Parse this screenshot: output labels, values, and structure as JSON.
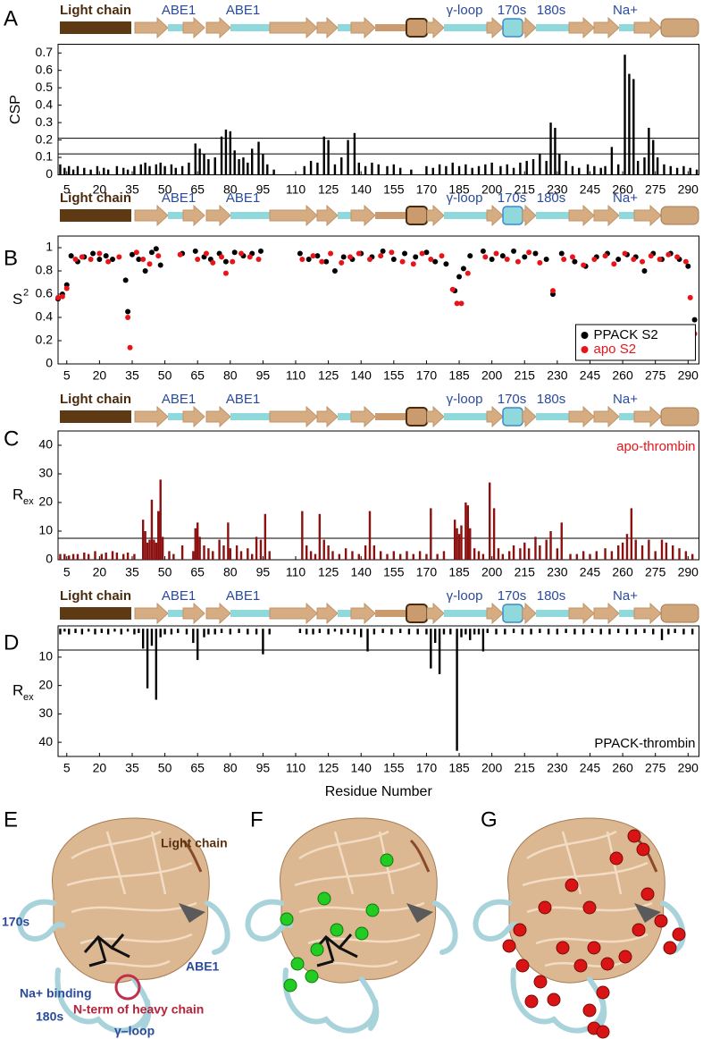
{
  "chart_data": [
    {
      "type": "bar",
      "panel": "A",
      "ylabel": "CSP",
      "xlim": [
        1,
        295
      ],
      "ylim": [
        0,
        0.75
      ],
      "xticks": [
        5,
        20,
        35,
        50,
        65,
        80,
        95,
        110,
        125,
        140,
        155,
        170,
        185,
        200,
        215,
        230,
        245,
        260,
        275,
        290
      ],
      "yticks": [
        0,
        0.1,
        0.2,
        0.3,
        0.4,
        0.5,
        0.6,
        0.7
      ],
      "hlines": [
        0.12,
        0.21
      ],
      "series": [
        {
          "color": "#000000",
          "x": [
            2,
            4,
            6,
            8,
            10,
            13,
            16,
            19,
            22,
            24,
            28,
            31,
            33,
            36,
            39,
            41,
            43,
            46,
            48,
            50,
            53,
            55,
            58,
            61,
            64,
            66,
            68,
            70,
            73,
            76,
            78,
            80,
            82,
            84,
            86,
            88,
            90,
            93,
            95,
            97,
            100,
            114,
            117,
            120,
            123,
            125,
            128,
            131,
            134,
            137,
            139,
            142,
            145,
            148,
            152,
            155,
            158,
            163,
            170,
            173,
            176,
            179,
            182,
            185,
            188,
            191,
            194,
            197,
            200,
            204,
            207,
            210,
            213,
            216,
            219,
            222,
            225,
            227,
            229,
            231,
            234,
            237,
            240,
            244,
            247,
            250,
            252,
            255,
            258,
            261,
            263,
            265,
            267,
            270,
            272,
            274,
            276,
            279,
            282,
            285,
            288,
            291,
            294
          ],
          "values": [
            0.06,
            0.04,
            0.05,
            0.03,
            0.05,
            0.04,
            0.03,
            0.05,
            0.04,
            0.03,
            0.05,
            0.04,
            0.03,
            0.05,
            0.06,
            0.07,
            0.05,
            0.06,
            0.07,
            0.05,
            0.06,
            0.04,
            0.05,
            0.07,
            0.18,
            0.15,
            0.12,
            0.09,
            0.1,
            0.22,
            0.26,
            0.25,
            0.14,
            0.09,
            0.1,
            0.07,
            0.15,
            0.19,
            0.12,
            0.06,
            0.03,
            0.05,
            0.08,
            0.07,
            0.22,
            0.2,
            0.06,
            0.1,
            0.2,
            0.24,
            0.07,
            0.05,
            0.07,
            0.06,
            0.05,
            0.06,
            0.04,
            0.03,
            0.05,
            0.04,
            0.06,
            0.05,
            0.07,
            0.05,
            0.06,
            0.04,
            0.05,
            0.06,
            0.07,
            0.05,
            0.06,
            0.04,
            0.07,
            0.08,
            0.09,
            0.12,
            0.08,
            0.3,
            0.27,
            0.12,
            0.08,
            0.05,
            0.04,
            0.06,
            0.05,
            0.04,
            0.05,
            0.16,
            0.06,
            0.69,
            0.58,
            0.55,
            0.08,
            0.1,
            0.27,
            0.2,
            0.1,
            0.06,
            0.05,
            0.04,
            0.05,
            0.04,
            0.03
          ]
        }
      ]
    },
    {
      "type": "scatter",
      "panel": "B",
      "ylabel": "S",
      "ylabel_sup": "2",
      "xlim": [
        1,
        295
      ],
      "ylim": [
        0,
        1.1
      ],
      "xticks": [
        5,
        20,
        35,
        50,
        65,
        80,
        95,
        110,
        125,
        140,
        155,
        170,
        185,
        200,
        215,
        230,
        245,
        260,
        275,
        290
      ],
      "yticks": [
        0,
        0.2,
        0.4,
        0.6,
        0.8,
        1
      ],
      "legend": "lower right",
      "series": [
        {
          "name": "PPACK S2",
          "color": "#000000",
          "x": [
            1,
            3,
            5,
            7,
            10,
            13,
            17,
            20,
            23,
            26,
            32,
            33,
            35,
            38,
            41,
            44,
            46,
            48,
            58,
            64,
            68,
            71,
            75,
            78,
            82,
            86,
            90,
            94,
            112,
            116,
            120,
            124,
            128,
            132,
            136,
            140,
            145,
            150,
            155,
            160,
            165,
            170,
            174,
            179,
            183,
            185,
            187,
            190,
            196,
            200,
            205,
            210,
            215,
            220,
            225,
            228,
            232,
            238,
            243,
            248,
            253,
            258,
            262,
            266,
            270,
            274,
            278,
            282,
            286,
            290,
            293
          ],
          "values": [
            0.56,
            0.6,
            0.68,
            0.93,
            0.88,
            0.92,
            0.95,
            0.9,
            0.93,
            0.9,
            0.72,
            0.45,
            0.94,
            0.9,
            0.8,
            0.96,
            0.99,
            0.85,
            0.95,
            0.97,
            0.92,
            0.9,
            0.95,
            0.88,
            0.96,
            0.93,
            0.95,
            0.97,
            0.95,
            0.9,
            0.93,
            0.88,
            0.8,
            0.92,
            0.9,
            0.95,
            0.92,
            0.97,
            0.9,
            0.95,
            0.92,
            0.96,
            0.88,
            0.86,
            0.63,
            0.75,
            0.82,
            0.93,
            0.97,
            0.9,
            0.93,
            0.97,
            0.92,
            0.95,
            0.9,
            0.6,
            0.95,
            0.88,
            0.84,
            0.92,
            0.95,
            0.9,
            0.94,
            0.92,
            0.8,
            0.95,
            0.9,
            0.95,
            0.9,
            0.84,
            0.38
          ]
        },
        {
          "name": "apo S2",
          "color": "#e8141a",
          "x": [
            1,
            3,
            5,
            9,
            12,
            16,
            20,
            24,
            29,
            33,
            34,
            37,
            40,
            43,
            47,
            57,
            65,
            69,
            72,
            76,
            78,
            81,
            85,
            89,
            93,
            113,
            118,
            122,
            126,
            131,
            135,
            139,
            144,
            149,
            154,
            159,
            164,
            168,
            172,
            177,
            182,
            184,
            186,
            189,
            197,
            202,
            207,
            212,
            217,
            222,
            228,
            233,
            237,
            242,
            247,
            252,
            256,
            261,
            265,
            269,
            273,
            277,
            281,
            285,
            289,
            291,
            293
          ],
          "values": [
            0.57,
            0.58,
            0.65,
            0.9,
            0.92,
            0.9,
            0.95,
            0.88,
            0.92,
            0.4,
            0.14,
            0.96,
            0.9,
            0.86,
            0.93,
            0.94,
            0.9,
            0.95,
            0.87,
            0.92,
            0.78,
            0.88,
            0.95,
            0.92,
            0.9,
            0.9,
            0.93,
            0.88,
            0.95,
            0.87,
            0.92,
            0.95,
            0.9,
            0.93,
            0.96,
            0.88,
            0.86,
            0.95,
            0.9,
            0.93,
            0.64,
            0.52,
            0.52,
            0.78,
            0.92,
            0.95,
            0.9,
            0.88,
            0.96,
            0.87,
            0.63,
            0.9,
            0.92,
            0.85,
            0.9,
            0.93,
            0.86,
            0.95,
            0.9,
            0.88,
            0.93,
            0.9,
            0.94,
            0.92,
            0.88,
            0.57,
            0.26
          ]
        }
      ]
    },
    {
      "type": "bar",
      "panel": "C",
      "ylabel": "R",
      "ylabel_sub": "ex",
      "xlim": [
        1,
        295
      ],
      "ylim": [
        0,
        45
      ],
      "xticks": [
        5,
        20,
        35,
        50,
        65,
        80,
        95,
        110,
        125,
        140,
        155,
        170,
        185,
        200,
        215,
        230,
        245,
        260,
        275,
        290
      ],
      "yticks": [
        0,
        10,
        20,
        30,
        40
      ],
      "hlines": [
        7.5
      ],
      "annotation": {
        "text": "apo-thrombin",
        "color": "#e8141a",
        "corner": "upper right"
      },
      "series": [
        {
          "color": "#8b1010",
          "x": [
            2,
            4,
            6,
            8,
            10,
            13,
            15,
            18,
            21,
            23,
            26,
            28,
            31,
            33,
            36,
            40,
            41,
            42,
            43,
            44,
            45,
            46,
            47,
            48,
            49,
            52,
            54,
            58,
            63,
            64,
            65,
            66,
            68,
            70,
            72,
            75,
            77,
            79,
            80,
            83,
            85,
            88,
            90,
            92,
            94,
            96,
            98,
            113,
            115,
            117,
            119,
            121,
            123,
            125,
            127,
            130,
            133,
            136,
            139,
            142,
            144,
            146,
            149,
            152,
            155,
            158,
            161,
            164,
            167,
            170,
            172,
            175,
            178,
            183,
            184,
            185,
            186,
            188,
            189,
            190,
            192,
            194,
            196,
            199,
            201,
            203,
            205,
            208,
            210,
            213,
            215,
            217,
            220,
            222,
            225,
            227,
            230,
            232,
            236,
            239,
            242,
            245,
            248,
            252,
            255,
            258,
            260,
            262,
            264,
            266,
            269,
            272,
            275,
            278,
            280,
            283,
            286,
            289,
            292
          ],
          "values": [
            2,
            2,
            1.5,
            2,
            2,
            2.5,
            2,
            3,
            2,
            2.5,
            3,
            2.5,
            2,
            2.5,
            2,
            14,
            10,
            6,
            7,
            21,
            7,
            6,
            17,
            28,
            8,
            3,
            2,
            5,
            3,
            11,
            13,
            8,
            5,
            4,
            3,
            7,
            5,
            13,
            4,
            5,
            3,
            4,
            2,
            8,
            7,
            16,
            3,
            17,
            5,
            3,
            2,
            16,
            7,
            5,
            3,
            2,
            4,
            3,
            2,
            5,
            17,
            5,
            3,
            2,
            3,
            2,
            3,
            2,
            3,
            2,
            18,
            2,
            3,
            14,
            11,
            9,
            12,
            20,
            19,
            11,
            4,
            3,
            2,
            27,
            18,
            4,
            2,
            3,
            5,
            4,
            6,
            4,
            8,
            5,
            7,
            10,
            4,
            13,
            2,
            2,
            3,
            2,
            3,
            4,
            3,
            5,
            6,
            9,
            18,
            7,
            5,
            7,
            3,
            7,
            6,
            5,
            4,
            3,
            2
          ]
        }
      ]
    },
    {
      "type": "bar",
      "panel": "D",
      "ylabel": "R",
      "ylabel_sub": "ex",
      "xlabel": "Residue Number",
      "xlim": [
        1,
        295
      ],
      "ylim": [
        -1,
        45
      ],
      "y_inverted": true,
      "xticks": [
        5,
        20,
        35,
        50,
        65,
        80,
        95,
        110,
        125,
        140,
        155,
        170,
        185,
        200,
        215,
        230,
        245,
        260,
        275,
        290
      ],
      "yticks": [
        10,
        20,
        30,
        40
      ],
      "hlines": [
        7.5
      ],
      "annotation": {
        "text": "PPACK-thrombin",
        "color": "#000000",
        "corner": "lower right"
      },
      "series": [
        {
          "color": "#000000",
          "x": [
            2,
            4,
            6,
            9,
            12,
            15,
            18,
            21,
            24,
            27,
            30,
            33,
            36,
            38,
            40,
            42,
            44,
            46,
            48,
            50,
            53,
            56,
            60,
            63,
            65,
            68,
            70,
            73,
            76,
            80,
            84,
            88,
            92,
            95,
            98,
            112,
            115,
            118,
            121,
            125,
            128,
            131,
            134,
            137,
            140,
            143,
            146,
            150,
            154,
            158,
            162,
            166,
            170,
            172,
            174,
            176,
            178,
            181,
            184,
            186,
            188,
            190,
            192,
            194,
            196,
            198,
            202,
            206,
            210,
            214,
            218,
            222,
            226,
            230,
            234,
            238,
            242,
            246,
            250,
            254,
            258,
            262,
            266,
            270,
            274,
            278,
            281,
            284,
            288,
            292
          ],
          "values": [
            2,
            1,
            2,
            1.5,
            2,
            1,
            2,
            1.5,
            2,
            1,
            2,
            1,
            2,
            1.5,
            7,
            21,
            6,
            25,
            3,
            2,
            2,
            1.5,
            2,
            5,
            11,
            3,
            2,
            2,
            1.5,
            2,
            1.5,
            2,
            2,
            9,
            2,
            1.5,
            2,
            2,
            1.5,
            2,
            1,
            2,
            1.5,
            2,
            3,
            8,
            2,
            1.5,
            2,
            1.5,
            2,
            2,
            2,
            14,
            5,
            16,
            2,
            2,
            43,
            3,
            2,
            4,
            2,
            2,
            8,
            1.5,
            2,
            2,
            1.5,
            2,
            2,
            1.5,
            2,
            2,
            1.5,
            2,
            2,
            1.5,
            2,
            2,
            1.5,
            2,
            2,
            1.5,
            2,
            4,
            2,
            1.5,
            2,
            2
          ]
        }
      ]
    }
  ],
  "topology": {
    "labels": [
      "Light chain",
      "ABE1",
      "ABE1",
      "γ-loop",
      "170s",
      "180s",
      "Na+"
    ]
  },
  "structures": {
    "panels": [
      "E",
      "F",
      "G"
    ],
    "labels": {
      "light_chain": "Light chain",
      "s170": "170s",
      "abe1": "ABE1",
      "na": "Na+ binding",
      "s180": "180s",
      "nterm": "N-term of heavy chain",
      "gloop": "γ–loop"
    }
  }
}
